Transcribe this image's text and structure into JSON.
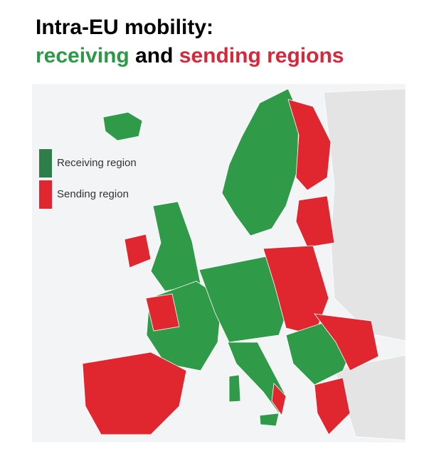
{
  "title": {
    "line1": "Intra-EU mobility:",
    "line2": [
      {
        "text": "receiving",
        "color": "#2a9a45"
      },
      {
        "text": "and",
        "color": "#000000"
      },
      {
        "text": "sending regions",
        "color": "#d8263a"
      }
    ]
  },
  "legend": [
    {
      "label": "Receiving region",
      "color": "#2f7d48"
    },
    {
      "label": "Sending region",
      "color": "#e0262f"
    }
  ]
}
